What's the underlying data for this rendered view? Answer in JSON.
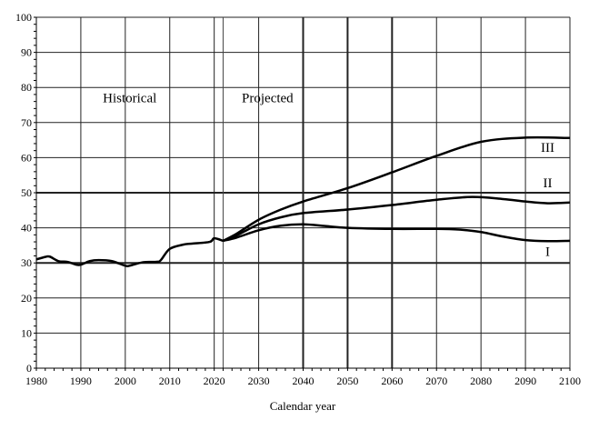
{
  "chart_data": {
    "type": "line",
    "title": "",
    "xlabel": "Calendar year",
    "ylabel": "",
    "xlim": [
      1980,
      2100
    ],
    "ylim": [
      0,
      100
    ],
    "xticks": [
      1980,
      1990,
      2000,
      2010,
      2020,
      2030,
      2040,
      2050,
      2060,
      2070,
      2080,
      2090,
      2100
    ],
    "yticks": [
      0,
      10,
      20,
      30,
      40,
      50,
      60,
      70,
      80,
      90,
      100
    ],
    "grid": true,
    "divider_year": 2022,
    "annotations": [
      {
        "text": "Historical",
        "x": 2001,
        "y": 75
      },
      {
        "text": "Projected",
        "x": 2032,
        "y": 75
      }
    ],
    "series": [
      {
        "name": "Historical",
        "label": "",
        "points": [
          [
            1980,
            31
          ],
          [
            1982,
            31.7
          ],
          [
            1983,
            31.8
          ],
          [
            1985,
            30.5
          ],
          [
            1987,
            30.3
          ],
          [
            1989,
            29.5
          ],
          [
            1990,
            29.5
          ],
          [
            1992,
            30.5
          ],
          [
            1994,
            30.8
          ],
          [
            1997,
            30.5
          ],
          [
            2000,
            29.2
          ],
          [
            2001,
            29.2
          ],
          [
            2004,
            30.2
          ],
          [
            2007,
            30.3
          ],
          [
            2008,
            30.8
          ],
          [
            2010,
            34
          ],
          [
            2013,
            35.2
          ],
          [
            2015,
            35.5
          ],
          [
            2019,
            36
          ],
          [
            2020,
            37
          ],
          [
            2022,
            36.3
          ]
        ]
      },
      {
        "name": "I",
        "label": "I",
        "label_at": [
          2095,
          32
        ],
        "points": [
          [
            2022,
            36.3
          ],
          [
            2025,
            37.2
          ],
          [
            2030,
            39.3
          ],
          [
            2035,
            40.6
          ],
          [
            2040,
            41
          ],
          [
            2045,
            40.5
          ],
          [
            2050,
            40
          ],
          [
            2060,
            39.7
          ],
          [
            2070,
            39.7
          ],
          [
            2075,
            39.5
          ],
          [
            2080,
            38.8
          ],
          [
            2085,
            37.5
          ],
          [
            2090,
            36.5
          ],
          [
            2095,
            36.2
          ],
          [
            2100,
            36.3
          ]
        ]
      },
      {
        "name": "II",
        "label": "II",
        "label_at": [
          2095,
          51.5
        ],
        "points": [
          [
            2022,
            36.3
          ],
          [
            2025,
            37.8
          ],
          [
            2030,
            41
          ],
          [
            2035,
            43
          ],
          [
            2040,
            44.2
          ],
          [
            2050,
            45.2
          ],
          [
            2060,
            46.5
          ],
          [
            2070,
            48
          ],
          [
            2078,
            48.8
          ],
          [
            2085,
            48.2
          ],
          [
            2090,
            47.5
          ],
          [
            2095,
            47
          ],
          [
            2100,
            47.2
          ]
        ]
      },
      {
        "name": "III",
        "label": "III",
        "label_at": [
          2095,
          61.7
        ],
        "points": [
          [
            2022,
            36.3
          ],
          [
            2025,
            38.3
          ],
          [
            2030,
            42.3
          ],
          [
            2035,
            45.2
          ],
          [
            2040,
            47.5
          ],
          [
            2050,
            51.3
          ],
          [
            2060,
            55.8
          ],
          [
            2070,
            60.5
          ],
          [
            2080,
            64.5
          ],
          [
            2090,
            65.7
          ],
          [
            2100,
            65.6
          ]
        ]
      }
    ],
    "line_color": "#000000"
  }
}
